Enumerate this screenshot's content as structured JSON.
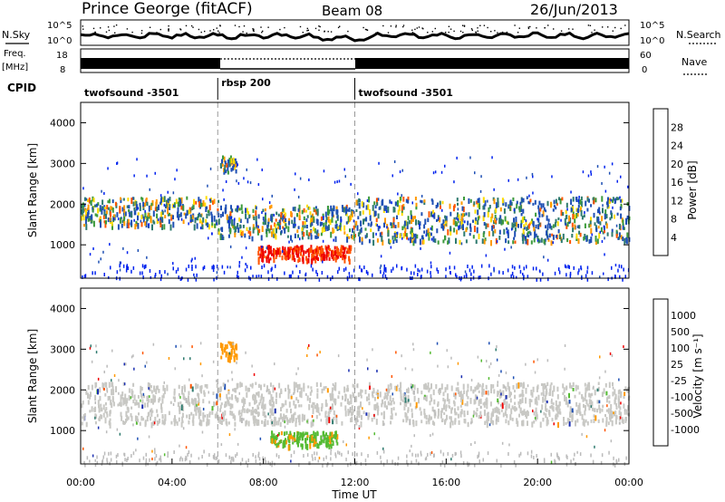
{
  "header": {
    "station": "Prince George (fitACF)",
    "beam": "Beam 08",
    "date": "26/Jun/2013"
  },
  "summary_panels": {
    "nsky_label": "N.Sky",
    "nsky_ticks": [
      "10^5",
      "10^0"
    ],
    "nsearch_label": "N.Search",
    "nsearch_ticks": [
      "10^5",
      "10^0"
    ],
    "freq_label": [
      "Freq.",
      "[MHz]"
    ],
    "freq_ticks": [
      "18",
      "8"
    ],
    "nave_label": "Nave",
    "nave_ticks": [
      "60",
      "0"
    ],
    "cpid_label": "CPID"
  },
  "cpid_segments": [
    {
      "name": "twofsound -3501",
      "start": 0,
      "end": 6
    },
    {
      "name": "rbsp 200",
      "start": 6,
      "end": 12
    },
    {
      "name": "twofsound -3501",
      "start": 12,
      "end": 24
    }
  ],
  "colors": {
    "power_scale": [
      "#0022ee",
      "#1e4fb4",
      "#2e7a6e",
      "#3c9a3c",
      "#ffdd00",
      "#ff9900",
      "#ff5500",
      "#ee0000"
    ],
    "velocity_scale": [
      "#ee0000",
      "#ff5500",
      "#ff9900",
      "#bbbbbb",
      "#bbbbbb",
      "#55bb33",
      "#2e7a6e",
      "#1e4fb4",
      "#1a2eb0"
    ]
  },
  "chart_data": [
    {
      "type": "heatmap",
      "name": "power",
      "ylabel": "Slant Range [km]",
      "xlim_hours": [
        0,
        24
      ],
      "ylim_km": [
        180,
        4500
      ],
      "yticks": [
        "1000",
        "2000",
        "3000",
        "4000"
      ],
      "colorbar_label": "Power [dB]",
      "colorbar_ticks": [
        "4",
        "8",
        "12",
        "16",
        "20",
        "24",
        "28"
      ],
      "features": [
        {
          "t_start": 0,
          "t_end": 6,
          "range_km": [
            1500,
            2200
          ],
          "level_db": "8-24"
        },
        {
          "t_start": 6,
          "t_end": 12,
          "range_km": [
            1200,
            2000
          ],
          "level_db": "8-20"
        },
        {
          "t_start": 7.7,
          "t_end": 11.8,
          "range_km": [
            650,
            1000
          ],
          "level_db": "24-30"
        },
        {
          "t_start": 12,
          "t_end": 24,
          "range_km": [
            1100,
            2200
          ],
          "level_db": "8-24"
        },
        {
          "t_start": 6.1,
          "t_end": 6.8,
          "range_km": [
            2800,
            3200
          ],
          "level_db": "8-16"
        }
      ]
    },
    {
      "type": "heatmap",
      "name": "velocity",
      "ylabel": "Slant Range [km]",
      "xlabel": "Time UT",
      "xlim_hours": [
        0,
        24
      ],
      "xticks": [
        "00:00",
        "04:00",
        "08:00",
        "12:00",
        "16:00",
        "20:00",
        "00:00"
      ],
      "ylim_km": [
        180,
        4500
      ],
      "yticks": [
        "1000",
        "2000",
        "3000",
        "4000"
      ],
      "colorbar_label": "Velocity [m s⁻¹]",
      "colorbar_ticks": [
        "1000",
        "500",
        "100",
        "25",
        "-25",
        "-100",
        "-500",
        "-1000"
      ],
      "features": [
        {
          "t_start": 0,
          "t_end": 24,
          "range_km": [
            1200,
            2200
          ],
          "velocity_ms": "-25 to 25"
        },
        {
          "t_start": 8.3,
          "t_end": 11.2,
          "range_km": [
            650,
            1000
          ],
          "velocity_ms": "25 to 100"
        },
        {
          "t_start": 6.1,
          "t_end": 6.8,
          "range_km": [
            2800,
            3200
          ],
          "velocity_ms": "-100 to -500"
        }
      ]
    }
  ]
}
